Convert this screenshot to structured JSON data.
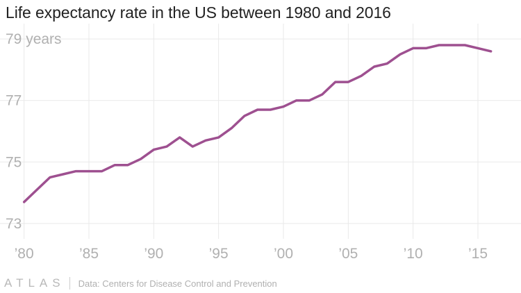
{
  "title": "Life expectancy rate in the US between 1980 and 2016",
  "footer": {
    "logo": "ATLAS",
    "source": "Data: Centers for Disease Control and Prevention"
  },
  "colors": {
    "line": "#9e5090",
    "grid": "#e9e9e9",
    "tick_text": "#b0b0b0"
  },
  "chart_data": {
    "type": "line",
    "title": "Life expectancy rate in the US between 1980 and 2016",
    "x": [
      1980,
      1981,
      1982,
      1983,
      1984,
      1985,
      1986,
      1987,
      1988,
      1989,
      1990,
      1991,
      1992,
      1993,
      1994,
      1995,
      1996,
      1997,
      1998,
      1999,
      2000,
      2001,
      2002,
      2003,
      2004,
      2005,
      2006,
      2007,
      2008,
      2009,
      2010,
      2011,
      2012,
      2013,
      2014,
      2015,
      2016
    ],
    "series": [
      {
        "values": [
          73.7,
          74.1,
          74.5,
          74.6,
          74.7,
          74.7,
          74.7,
          74.9,
          74.9,
          75.1,
          75.4,
          75.5,
          75.8,
          75.5,
          75.7,
          75.8,
          76.1,
          76.5,
          76.7,
          76.7,
          76.8,
          77.0,
          77.0,
          77.2,
          77.6,
          77.6,
          77.8,
          78.1,
          78.2,
          78.5,
          78.7,
          78.7,
          78.8,
          78.8,
          78.8,
          78.7,
          78.6
        ]
      }
    ],
    "xlim": [
      1979,
      2018
    ],
    "ylim": [
      72.5,
      79.5
    ],
    "x_ticks": [
      {
        "value": 1980,
        "label": "’80"
      },
      {
        "value": 1985,
        "label": "’85"
      },
      {
        "value": 1990,
        "label": "’90"
      },
      {
        "value": 1995,
        "label": "’95"
      },
      {
        "value": 2000,
        "label": "’00"
      },
      {
        "value": 2005,
        "label": "’05"
      },
      {
        "value": 2010,
        "label": "’10"
      },
      {
        "value": 2015,
        "label": "’15"
      }
    ],
    "y_ticks": [
      {
        "value": 73,
        "label": "73"
      },
      {
        "value": 75,
        "label": "75"
      },
      {
        "value": 77,
        "label": "77"
      },
      {
        "value": 79,
        "label": "79 years"
      }
    ],
    "grid": true,
    "legend": "none"
  }
}
